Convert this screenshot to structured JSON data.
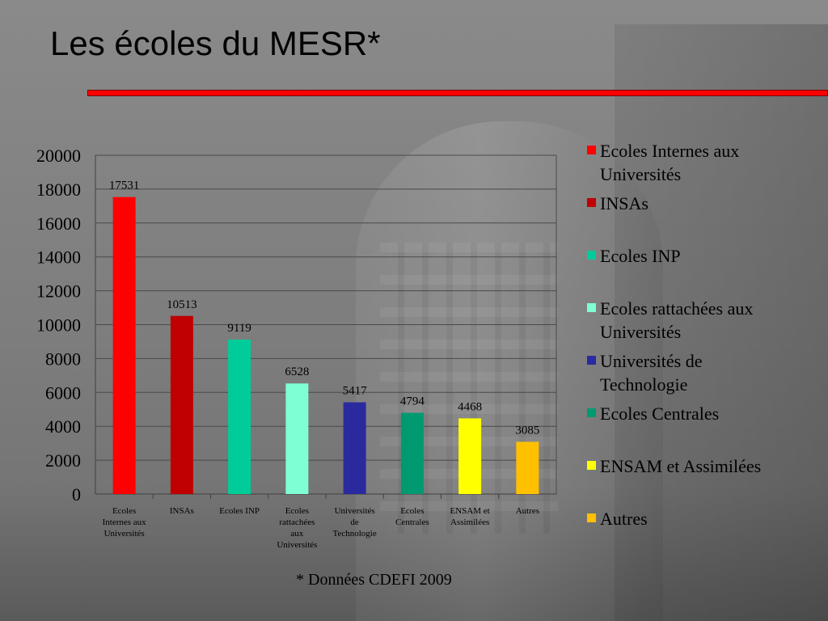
{
  "slide": {
    "title": "Les écoles du MESR*",
    "footnote": "* Données CDEFI 2009"
  },
  "chart_data": {
    "type": "bar",
    "title": "",
    "xlabel": "",
    "ylabel": "",
    "ylim": [
      0,
      20000
    ],
    "y_ticks": [
      "0",
      "2000",
      "4000",
      "6000",
      "8000",
      "10000",
      "12000",
      "14000",
      "16000",
      "18000",
      "20000"
    ],
    "grid": true,
    "legend_position": "right",
    "categories": [
      [
        "Ecoles",
        "Internes aux",
        "Universités"
      ],
      [
        "INSAs"
      ],
      [
        "Ecoles INP"
      ],
      [
        "Ecoles",
        "rattachées",
        "aux",
        "Universités"
      ],
      [
        "Universités",
        "de",
        "Technologie"
      ],
      [
        "Ecoles",
        "Centrales"
      ],
      [
        "ENSAM et",
        "Assimilées"
      ],
      [
        "Autres"
      ]
    ],
    "values": [
      17531,
      10513,
      9119,
      6528,
      5417,
      4794,
      4468,
      3085
    ],
    "data_labels": [
      "17531",
      "10513",
      "9119",
      "6528",
      "5417",
      "4794",
      "4468",
      "3085"
    ],
    "colors": [
      "#ff0000",
      "#c00000",
      "#00cc99",
      "#7fffd4",
      "#2a2a9e",
      "#009970",
      "#ffff00",
      "#ffc000"
    ],
    "legend": [
      [
        "Ecoles Internes aux",
        "Universités"
      ],
      [
        "INSAs"
      ],
      [
        "Ecoles INP"
      ],
      [
        "Ecoles rattachées aux",
        "Universités"
      ],
      [
        "Universités de",
        "Technologie"
      ],
      [
        "Ecoles Centrales"
      ],
      [
        "ENSAM et Assimilées"
      ],
      [
        "Autres"
      ]
    ]
  }
}
